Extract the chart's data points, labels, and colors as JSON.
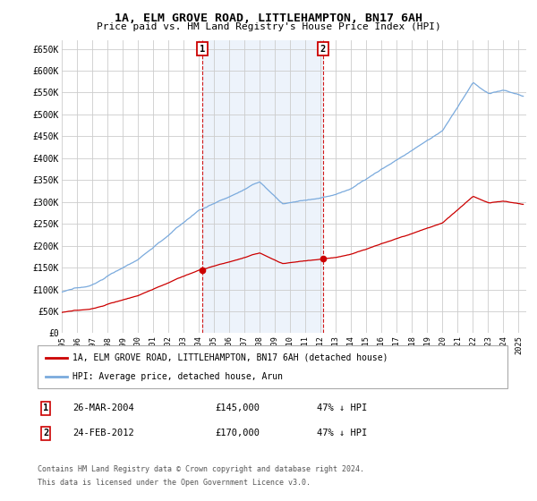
{
  "title": "1A, ELM GROVE ROAD, LITTLEHAMPTON, BN17 6AH",
  "subtitle": "Price paid vs. HM Land Registry's House Price Index (HPI)",
  "ylabel_ticks": [
    "£0",
    "£50K",
    "£100K",
    "£150K",
    "£200K",
    "£250K",
    "£300K",
    "£350K",
    "£400K",
    "£450K",
    "£500K",
    "£550K",
    "£600K",
    "£650K"
  ],
  "ytick_values": [
    0,
    50000,
    100000,
    150000,
    200000,
    250000,
    300000,
    350000,
    400000,
    450000,
    500000,
    550000,
    600000,
    650000
  ],
  "ylim": [
    0,
    670000
  ],
  "xlim_left": 1995,
  "xlim_right": 2025.5,
  "purchase1_date": 2004.23,
  "purchase1_price": 145000,
  "purchase2_date": 2012.15,
  "purchase2_price": 170000,
  "legend1": "1A, ELM GROVE ROAD, LITTLEHAMPTON, BN17 6AH (detached house)",
  "legend2": "HPI: Average price, detached house, Arun",
  "footnote1": "Contains HM Land Registry data © Crown copyright and database right 2024.",
  "footnote2": "This data is licensed under the Open Government Licence v3.0.",
  "hpi_color": "#7aaadd",
  "price_color": "#cc0000",
  "vline_color": "#cc0000",
  "shade_color": "#ccddf5",
  "grid_color": "#cccccc",
  "bg_color": "#ffffff",
  "box_edge_color": "#cc0000",
  "row1_num": "1",
  "row1_date": "26-MAR-2004",
  "row1_price": "£145,000",
  "row1_hpi": "47% ↓ HPI",
  "row2_num": "2",
  "row2_date": "24-FEB-2012",
  "row2_price": "£170,000",
  "row2_hpi": "47% ↓ HPI"
}
